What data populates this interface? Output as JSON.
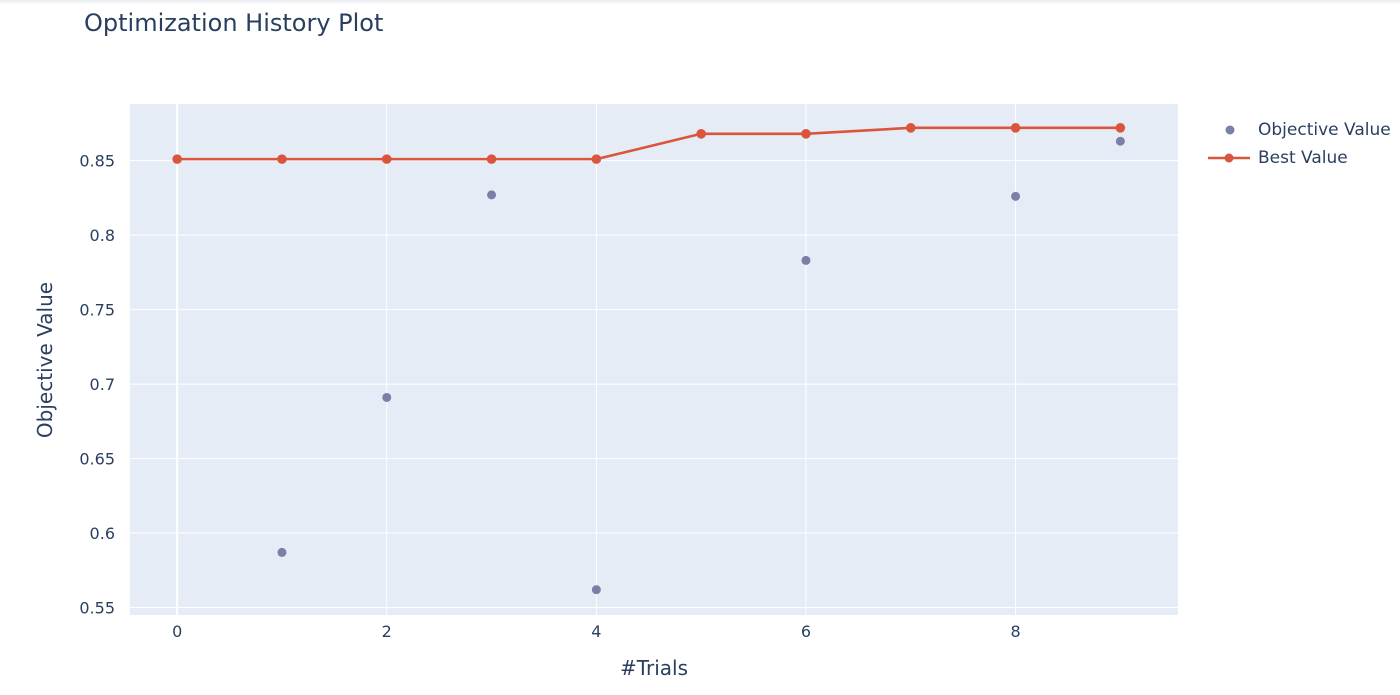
{
  "chart_data": {
    "type": "scatter",
    "title": "Optimization History Plot",
    "xlabel": "#Trials",
    "ylabel": "Objective Value",
    "xlim": [
      -0.45,
      9.55
    ],
    "ylim": [
      0.545,
      0.888
    ],
    "xticks": [
      0,
      2,
      4,
      6,
      8
    ],
    "xtick_labels": [
      "0",
      "2",
      "4",
      "6",
      "8"
    ],
    "yticks": [
      0.55,
      0.6,
      0.65,
      0.7,
      0.75,
      0.8,
      0.85
    ],
    "ytick_labels": [
      "0.55",
      "0.6",
      "0.65",
      "0.7",
      "0.75",
      "0.8",
      "0.85"
    ],
    "grid": true,
    "legend_position": "top-right",
    "series": [
      {
        "name": "Objective Value",
        "mode": "markers",
        "color": "#7a80a8",
        "x": [
          0,
          1,
          2,
          3,
          4,
          5,
          6,
          7,
          8,
          9
        ],
        "y": [
          0.851,
          0.587,
          0.691,
          0.827,
          0.562,
          0.868,
          0.783,
          0.872,
          0.826,
          0.863
        ]
      },
      {
        "name": "Best Value",
        "mode": "lines+markers",
        "color": "#d9553c",
        "x": [
          0,
          1,
          2,
          3,
          4,
          5,
          6,
          7,
          8,
          9
        ],
        "y": [
          0.851,
          0.851,
          0.851,
          0.851,
          0.851,
          0.868,
          0.868,
          0.872,
          0.872,
          0.872
        ]
      }
    ]
  }
}
